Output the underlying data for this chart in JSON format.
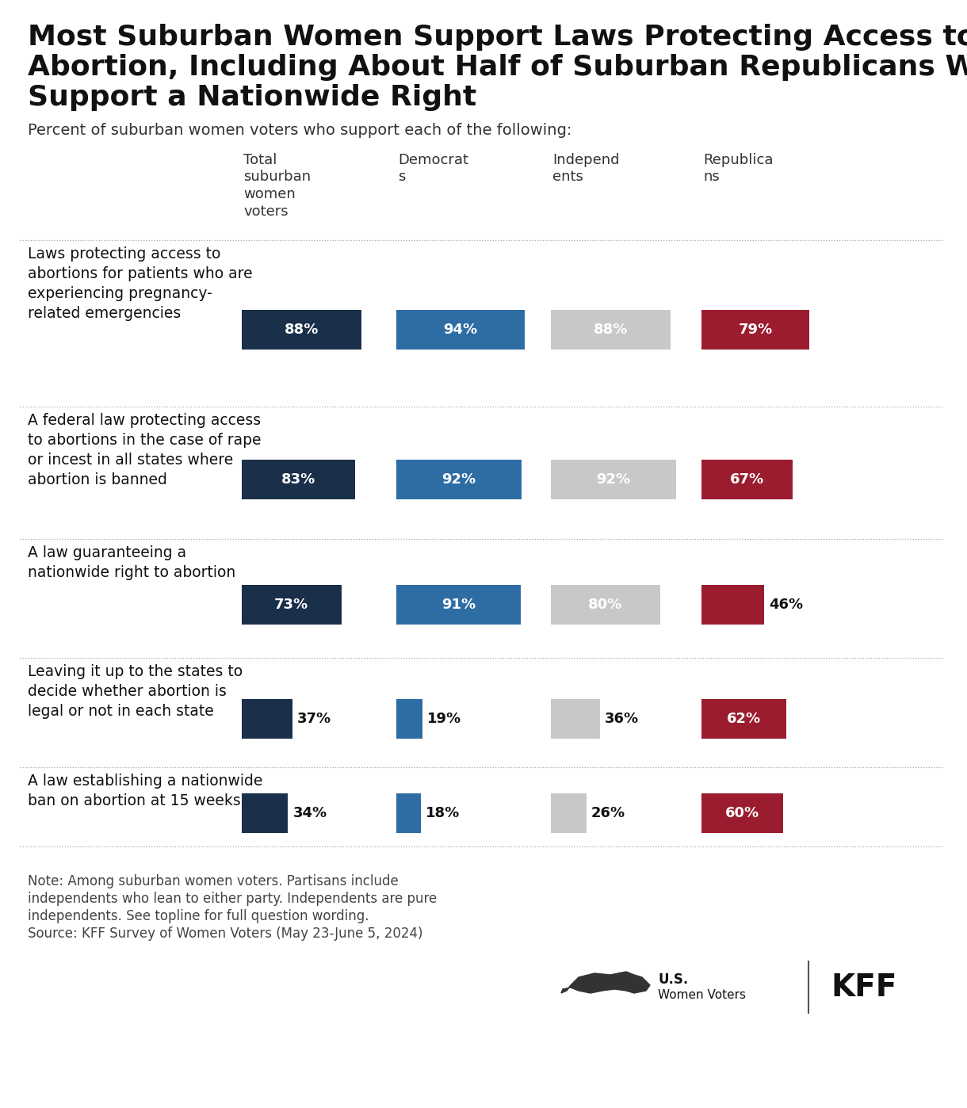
{
  "title_line1": "Most Suburban Women Support Laws Protecting Access to",
  "title_line2": "Abortion, Including About Half of Suburban Republicans Who",
  "title_line3": "Support a Nationwide Right",
  "subtitle": "Percent of suburban women voters who support each of the following:",
  "col_headers": [
    "Total\nsuburban\nwomen\nvoters",
    "Democrats",
    "Independents",
    "Republicans"
  ],
  "rows": [
    {
      "label": "Laws protecting access to\nabortions for patients who are\nexperiencing pregnancy-\nrelated emergencies",
      "values": [
        88,
        94,
        88,
        79
      ]
    },
    {
      "label": "A federal law protecting access\nto abortions in the case of rape\nor incest in all states where\nabortion is banned",
      "values": [
        83,
        92,
        92,
        67
      ]
    },
    {
      "label": "A law guaranteeing a\nnationwide right to abortion",
      "values": [
        73,
        91,
        80,
        46
      ]
    },
    {
      "label": "Leaving it up to the states to\ndecide whether abortion is\nlegal or not in each state",
      "values": [
        37,
        19,
        36,
        62
      ]
    },
    {
      "label": "A law establishing a nationwide\nban on abortion at 15 weeks",
      "values": [
        34,
        18,
        26,
        60
      ]
    }
  ],
  "colors": [
    "#1a2f4a",
    "#2e6da4",
    "#c8c8c8",
    "#9b1c2e"
  ],
  "note_line1": "Note: Among suburban women voters. Partisans include",
  "note_line2": "independents who lean to either party. Independents are pure",
  "note_line3": "independents. See topline for full question wording.",
  "note_line4": "Source: KFF Survey of Women Voters (May 23-June 5, 2024)",
  "bg_color": "#ffffff",
  "title_fontsize": 26,
  "subtitle_fontsize": 14,
  "label_fontsize": 13.5,
  "value_fontsize": 13,
  "header_fontsize": 13,
  "note_fontsize": 12
}
